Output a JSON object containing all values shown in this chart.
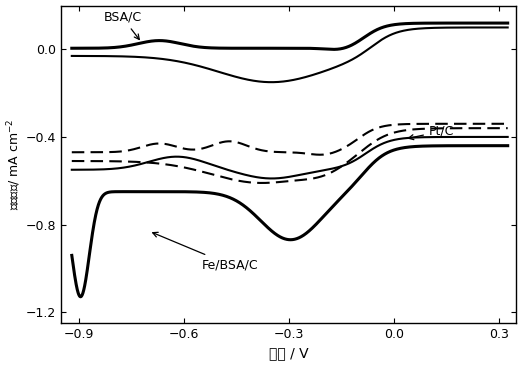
{
  "title": "",
  "xlabel": "电压 / V",
  "ylabel": "电流密度/ mA cm⁻²",
  "xlim": [
    -0.95,
    0.35
  ],
  "ylim": [
    -1.25,
    0.2
  ],
  "xticks": [
    -0.9,
    -0.6,
    -0.3,
    0.0,
    0.3
  ],
  "yticks": [
    -1.2,
    -0.8,
    -0.4,
    0.0
  ],
  "lw_thick": 2.2,
  "lw_thin": 1.5
}
